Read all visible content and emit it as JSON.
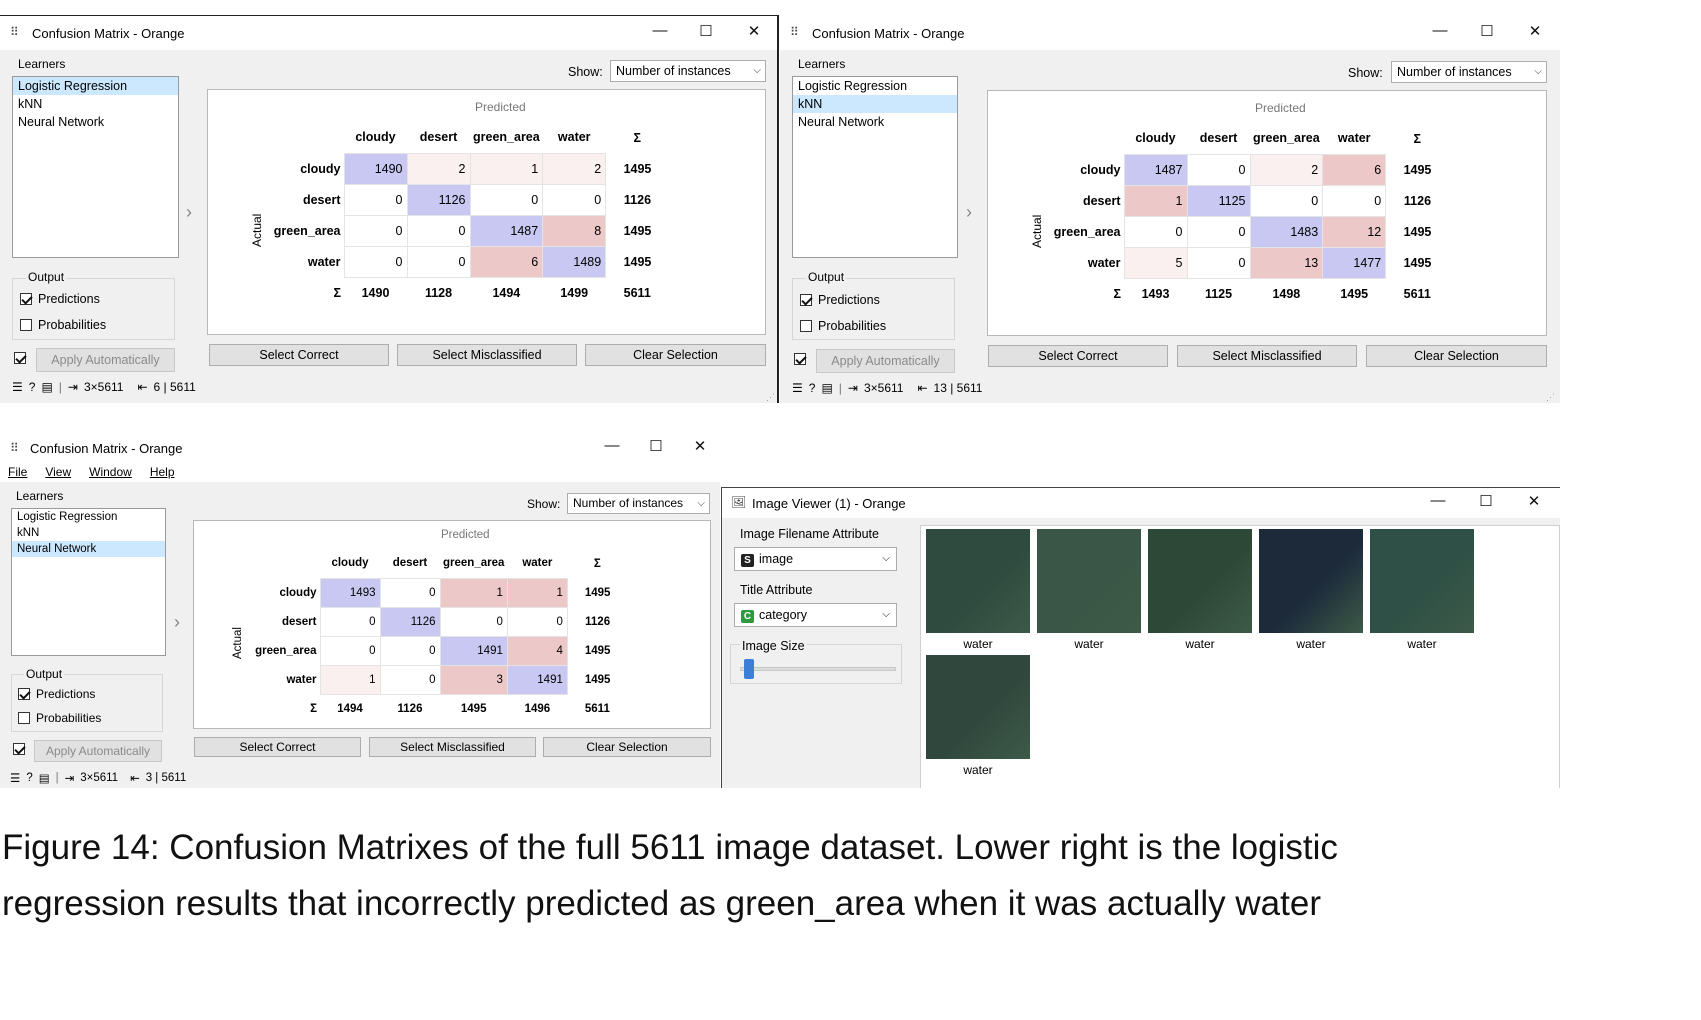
{
  "windows": [
    {
      "title": "Confusion Matrix - Orange",
      "learners_label": "Learners",
      "learners": [
        "Logistic Regression",
        "kNN",
        "Neural Network"
      ],
      "selected_learner": 0,
      "output_label": "Output",
      "predictions_label": "Predictions",
      "probabilities_label": "Probabilities",
      "apply_label": "Apply Automatically",
      "show_label": "Show:",
      "show_value": "Number of instances",
      "predicted_label": "Predicted",
      "actual_label": "Actual",
      "classes": [
        "cloudy",
        "desert",
        "green_area",
        "water"
      ],
      "sigma": "Σ",
      "matrix": [
        [
          1490,
          2,
          1,
          2
        ],
        [
          0,
          1126,
          0,
          0
        ],
        [
          0,
          0,
          1487,
          8
        ],
        [
          0,
          0,
          6,
          1489
        ]
      ],
      "row_totals": [
        1495,
        1126,
        1495,
        1495
      ],
      "col_totals": [
        1490,
        1128,
        1494,
        1499
      ],
      "grand_total": 5611,
      "select_correct": "Select Correct",
      "select_misclassified": "Select Misclassified",
      "clear_selection": "Clear Selection",
      "status_input": "3×5611",
      "status_output": "6 | 5611"
    },
    {
      "title": "Confusion Matrix - Orange",
      "learners_label": "Learners",
      "learners": [
        "Logistic Regression",
        "kNN",
        "Neural Network"
      ],
      "selected_learner": 1,
      "output_label": "Output",
      "predictions_label": "Predictions",
      "probabilities_label": "Probabilities",
      "apply_label": "Apply Automatically",
      "show_label": "Show:",
      "show_value": "Number of instances",
      "predicted_label": "Predicted",
      "actual_label": "Actual",
      "classes": [
        "cloudy",
        "desert",
        "green_area",
        "water"
      ],
      "sigma": "Σ",
      "matrix": [
        [
          1487,
          0,
          2,
          6
        ],
        [
          1,
          1125,
          0,
          0
        ],
        [
          0,
          0,
          1483,
          12
        ],
        [
          5,
          0,
          13,
          1477
        ]
      ],
      "row_totals": [
        1495,
        1126,
        1495,
        1495
      ],
      "col_totals": [
        1493,
        1125,
        1498,
        1495
      ],
      "grand_total": 5611,
      "select_correct": "Select Correct",
      "select_misclassified": "Select Misclassified",
      "clear_selection": "Clear Selection",
      "status_input": "3×5611",
      "status_output": "13 | 5611"
    },
    {
      "title": "Confusion Matrix - Orange",
      "menu": [
        "File",
        "View",
        "Window",
        "Help"
      ],
      "learners_label": "Learners",
      "learners": [
        "Logistic Regression",
        "kNN",
        "Neural Network"
      ],
      "selected_learner": 2,
      "output_label": "Output",
      "predictions_label": "Predictions",
      "probabilities_label": "Probabilities",
      "apply_label": "Apply Automatically",
      "show_label": "Show:",
      "show_value": "Number of instances",
      "predicted_label": "Predicted",
      "actual_label": "Actual",
      "classes": [
        "cloudy",
        "desert",
        "green_area",
        "water"
      ],
      "sigma": "Σ",
      "matrix": [
        [
          1493,
          0,
          1,
          1
        ],
        [
          0,
          1126,
          0,
          0
        ],
        [
          0,
          0,
          1491,
          4
        ],
        [
          1,
          0,
          3,
          1491
        ]
      ],
      "row_totals": [
        1495,
        1126,
        1495,
        1495
      ],
      "col_totals": [
        1494,
        1126,
        1495,
        1496
      ],
      "grand_total": 5611,
      "select_correct": "Select Correct",
      "select_misclassified": "Select Misclassified",
      "clear_selection": "Clear Selection",
      "status_input": "3×5611",
      "status_output": "3 | 5611"
    }
  ],
  "image_viewer": {
    "title": "Image Viewer (1) - Orange",
    "filename_attr_label": "Image Filename Attribute",
    "filename_attr_value": "image",
    "filename_attr_icon": "S",
    "title_attr_label": "Title Attribute",
    "title_attr_value": "category",
    "title_attr_icon": "C",
    "image_size_label": "Image Size",
    "images": [
      {
        "caption": "water",
        "color": "#2f4a3f"
      },
      {
        "caption": "water",
        "color": "#3a5646"
      },
      {
        "caption": "water",
        "color": "#2e4838"
      },
      {
        "caption": "water",
        "color": "#1c2a3a"
      },
      {
        "caption": "water",
        "color": "#2f5046"
      },
      {
        "caption": "water",
        "color": "#30473d"
      }
    ]
  },
  "caption": {
    "line1": "Figure 14: Confusion Matrixes of the full 5611 image dataset. Lower right is the logistic",
    "line2": "regression results that incorrectly predicted as green_area when it was actually water"
  },
  "colors": {
    "correct_strong": "#c8c8f2",
    "misclassified_strong": "#ecc8c8",
    "misclassified_light": "#fbf0f0",
    "selection": "#cce8ff"
  }
}
